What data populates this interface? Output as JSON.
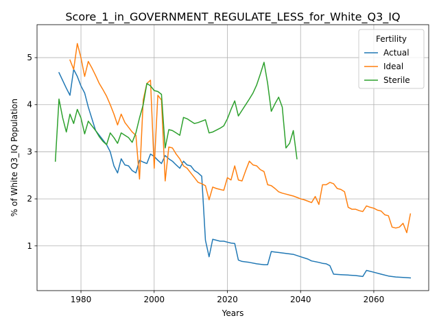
{
  "chart_data": {
    "type": "line",
    "title": "Score_1_in_GOVERNMENT_REGULATE_LESS_for_White_Q3_IQ",
    "xlabel": "Years",
    "ylabel": "% of White Q3_IQ Population",
    "xlim": [
      1968,
      2075
    ],
    "ylim": [
      0.05,
      5.7
    ],
    "xticks": [
      1980,
      2000,
      2020,
      2040,
      2060
    ],
    "yticks": [
      1,
      2,
      3,
      4,
      5
    ],
    "grid": true,
    "legend": {
      "title": "Fertility",
      "placement": "top-right"
    },
    "series": [
      {
        "name": "Actual",
        "color": "#1f77b4",
        "x": [
          1974,
          1976,
          1977,
          1978,
          1979,
          1980,
          1981,
          1982,
          1984,
          1986,
          1987,
          1988,
          1989,
          1990,
          1991,
          1992,
          1993,
          1994,
          1995,
          1996,
          1997,
          1998,
          1999,
          2000,
          2001,
          2002,
          2003,
          2004,
          2005,
          2006,
          2007,
          2008,
          2009,
          2010,
          2011,
          2012,
          2013,
          2014,
          2015,
          2016,
          2017,
          2018,
          2019,
          2020,
          2021,
          2022,
          2023,
          2024,
          2026,
          2028,
          2030,
          2031,
          2032,
          2033,
          2034,
          2036,
          2038,
          2040,
          2042,
          2043,
          2045,
          2046,
          2047,
          2048,
          2049,
          2051,
          2053,
          2055,
          2057,
          2058,
          2060,
          2062,
          2064,
          2066,
          2068,
          2070
        ],
        "y": [
          4.68,
          4.35,
          4.2,
          4.75,
          4.6,
          4.4,
          4.25,
          3.95,
          3.45,
          3.25,
          3.15,
          3.0,
          2.7,
          2.55,
          2.85,
          2.72,
          2.7,
          2.6,
          2.55,
          2.82,
          2.78,
          2.75,
          2.95,
          2.9,
          2.82,
          2.75,
          2.92,
          2.85,
          2.8,
          2.72,
          2.65,
          2.8,
          2.72,
          2.7,
          2.6,
          2.55,
          2.48,
          1.12,
          0.77,
          1.14,
          1.12,
          1.1,
          1.1,
          1.08,
          1.06,
          1.05,
          0.7,
          0.67,
          0.65,
          0.62,
          0.6,
          0.6,
          0.88,
          0.87,
          0.86,
          0.84,
          0.82,
          0.77,
          0.72,
          0.68,
          0.65,
          0.63,
          0.62,
          0.58,
          0.4,
          0.39,
          0.38,
          0.37,
          0.35,
          0.48,
          0.44,
          0.4,
          0.36,
          0.34,
          0.33,
          0.32
        ]
      },
      {
        "name": "Ideal",
        "color": "#ff7f0e",
        "x": [
          1977,
          1978,
          1979,
          1980,
          1981,
          1982,
          1983,
          1984,
          1985,
          1986,
          1987,
          1988,
          1989,
          1990,
          1991,
          1992,
          1993,
          1994,
          1995,
          1996,
          1997,
          1998,
          1999,
          2000,
          2001,
          2002,
          2003,
          2004,
          2005,
          2006,
          2007,
          2008,
          2009,
          2010,
          2011,
          2012,
          2013,
          2014,
          2015,
          2016,
          2017,
          2018,
          2019,
          2020,
          2021,
          2022,
          2023,
          2024,
          2025,
          2026,
          2027,
          2028,
          2029,
          2030,
          2031,
          2032,
          2033,
          2034,
          2035,
          2036,
          2037,
          2038,
          2039,
          2040,
          2041,
          2042,
          2043,
          2044,
          2045,
          2046,
          2047,
          2048,
          2049,
          2050,
          2051,
          2052,
          2053,
          2054,
          2055,
          2056,
          2057,
          2058,
          2059,
          2060,
          2061,
          2062,
          2063,
          2064,
          2065,
          2066,
          2067,
          2068,
          2069,
          2070
        ],
        "y": [
          4.95,
          4.75,
          5.3,
          5.0,
          4.6,
          4.92,
          4.78,
          4.62,
          4.45,
          4.32,
          4.18,
          4.0,
          3.8,
          3.57,
          3.8,
          3.62,
          3.52,
          3.42,
          3.35,
          2.42,
          4.1,
          4.45,
          4.52,
          2.65,
          4.2,
          4.1,
          2.38,
          3.1,
          3.08,
          2.95,
          2.85,
          2.7,
          2.65,
          2.55,
          2.45,
          2.35,
          2.32,
          2.28,
          1.98,
          2.25,
          2.22,
          2.2,
          2.18,
          2.45,
          2.4,
          2.7,
          2.4,
          2.38,
          2.6,
          2.8,
          2.72,
          2.7,
          2.62,
          2.58,
          2.3,
          2.28,
          2.22,
          2.15,
          2.12,
          2.1,
          2.08,
          2.06,
          2.03,
          2.0,
          1.98,
          1.95,
          1.92,
          2.05,
          1.88,
          2.3,
          2.3,
          2.35,
          2.32,
          2.22,
          2.2,
          2.15,
          1.82,
          1.78,
          1.78,
          1.75,
          1.73,
          1.85,
          1.82,
          1.8,
          1.76,
          1.74,
          1.66,
          1.64,
          1.4,
          1.38,
          1.4,
          1.48,
          1.28,
          1.68
        ]
      },
      {
        "name": "Sterile",
        "color": "#2ca02c",
        "x": [
          1973,
          1974,
          1975,
          1976,
          1977,
          1978,
          1979,
          1980,
          1981,
          1982,
          1983,
          1984,
          1985,
          1986,
          1987,
          1988,
          1989,
          1990,
          1991,
          1992,
          1993,
          1994,
          1995,
          1996,
          1997,
          1998,
          1999,
          2000,
          2001,
          2002,
          2003,
          2004,
          2005,
          2006,
          2007,
          2008,
          2009,
          2010,
          2011,
          2012,
          2013,
          2014,
          2015,
          2016,
          2017,
          2018,
          2019,
          2020,
          2021,
          2022,
          2023,
          2024,
          2025,
          2026,
          2027,
          2028,
          2029,
          2030,
          2031,
          2032,
          2033,
          2034,
          2035,
          2036,
          2037,
          2038,
          2039
        ],
        "y": [
          2.8,
          4.12,
          3.72,
          3.42,
          3.8,
          3.6,
          3.9,
          3.72,
          3.38,
          3.65,
          3.55,
          3.45,
          3.32,
          3.22,
          3.15,
          3.4,
          3.3,
          3.18,
          3.4,
          3.35,
          3.3,
          3.2,
          3.4,
          3.72,
          4.0,
          4.45,
          4.4,
          4.3,
          4.28,
          4.22,
          3.08,
          3.47,
          3.45,
          3.4,
          3.35,
          3.73,
          3.7,
          3.65,
          3.6,
          3.62,
          3.65,
          3.68,
          3.4,
          3.42,
          3.46,
          3.5,
          3.55,
          3.7,
          3.9,
          4.08,
          3.76,
          3.88,
          4.0,
          4.12,
          4.25,
          4.42,
          4.65,
          4.9,
          4.45,
          3.86,
          4.02,
          4.16,
          3.95,
          3.08,
          3.18,
          3.45,
          2.85
        ]
      }
    ]
  }
}
